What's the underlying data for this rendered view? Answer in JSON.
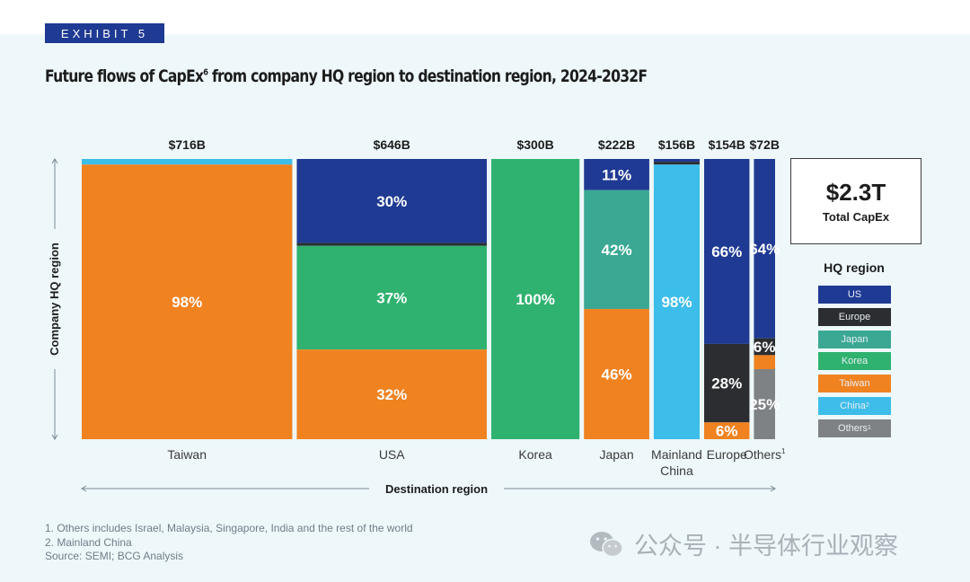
{
  "exhibit_label": "EXHIBIT 5",
  "title": "Future flows of CapEx",
  "title_sup": "6",
  "title_rest": " from company HQ region to destination region, 2024-2032F",
  "total": {
    "value": "$2.3T",
    "label": "Total CapEx"
  },
  "legend": {
    "title": "HQ region",
    "items": [
      {
        "label": "US",
        "sup": "",
        "color": "#1f3a93"
      },
      {
        "label": "Europe",
        "sup": "",
        "color": "#2b2d30"
      },
      {
        "label": "Japan",
        "sup": "",
        "color": "#3aa893"
      },
      {
        "label": "Korea",
        "sup": "",
        "color": "#2fb26f"
      },
      {
        "label": "Taiwan",
        "sup": "",
        "color": "#f08220"
      },
      {
        "label": "China",
        "sup": "2",
        "color": "#3dbde9"
      },
      {
        "label": "Others",
        "sup": "1",
        "color": "#7f8284"
      }
    ]
  },
  "footnotes": [
    "1. Others includes Israel, Malaysia, Singapore, India and the rest of the world",
    "2. Mainland China",
    "Source: SEMI; BCG Analysis"
  ],
  "watermark": "公众号 · 半导体行业观察",
  "chart_data": {
    "type": "mekko",
    "xlabel": "Destination region",
    "ylabel": "Company HQ region",
    "categories": [
      {
        "name": "Taiwan",
        "sup": "",
        "total": 716,
        "total_label": "$716B"
      },
      {
        "name": "USA",
        "sup": "",
        "total": 646,
        "total_label": "$646B"
      },
      {
        "name": "Korea",
        "sup": "",
        "total": 300,
        "total_label": "$300B"
      },
      {
        "name": "Japan",
        "sup": "",
        "total": 222,
        "total_label": "$222B"
      },
      {
        "name": "Mainland China",
        "sup": "",
        "total": 156,
        "total_label": "$156B"
      },
      {
        "name": "Europe",
        "sup": "",
        "total": 154,
        "total_label": "$154B"
      },
      {
        "name": "Others",
        "sup": "1",
        "total": 72,
        "total_label": "$72B"
      }
    ],
    "series_order": [
      "US",
      "Europe",
      "Japan",
      "Korea",
      "Taiwan",
      "China",
      "Others"
    ],
    "segments": [
      [
        {
          "hq": "China",
          "share": 2,
          "label": ""
        },
        {
          "hq": "Taiwan",
          "share": 98,
          "label": "98%"
        }
      ],
      [
        {
          "hq": "US",
          "share": 30,
          "label": "30%"
        },
        {
          "hq": "Europe",
          "share": 1,
          "label": ""
        },
        {
          "hq": "Korea",
          "share": 37,
          "label": "37%"
        },
        {
          "hq": "Taiwan",
          "share": 32,
          "label": "32%"
        }
      ],
      [
        {
          "hq": "Korea",
          "share": 100,
          "label": "100%"
        }
      ],
      [
        {
          "hq": "US",
          "share": 11,
          "label": "11%"
        },
        {
          "hq": "Japan",
          "share": 42,
          "label": "42%"
        },
        {
          "hq": "Taiwan",
          "share": 46,
          "label": "46%"
        }
      ],
      [
        {
          "hq": "US",
          "share": 1,
          "label": ""
        },
        {
          "hq": "Europe",
          "share": 1,
          "label": ""
        },
        {
          "hq": "China",
          "share": 98,
          "label": "98%"
        }
      ],
      [
        {
          "hq": "US",
          "share": 66,
          "label": "66%"
        },
        {
          "hq": "Europe",
          "share": 28,
          "label": "28%"
        },
        {
          "hq": "Taiwan",
          "share": 6,
          "label": "6%"
        }
      ],
      [
        {
          "hq": "US",
          "share": 64,
          "label": "64%"
        },
        {
          "hq": "Europe",
          "share": 6,
          "label": "6%"
        },
        {
          "hq": "Taiwan",
          "share": 5,
          "label": ""
        },
        {
          "hq": "Others",
          "share": 25,
          "label": "25%"
        }
      ]
    ]
  }
}
